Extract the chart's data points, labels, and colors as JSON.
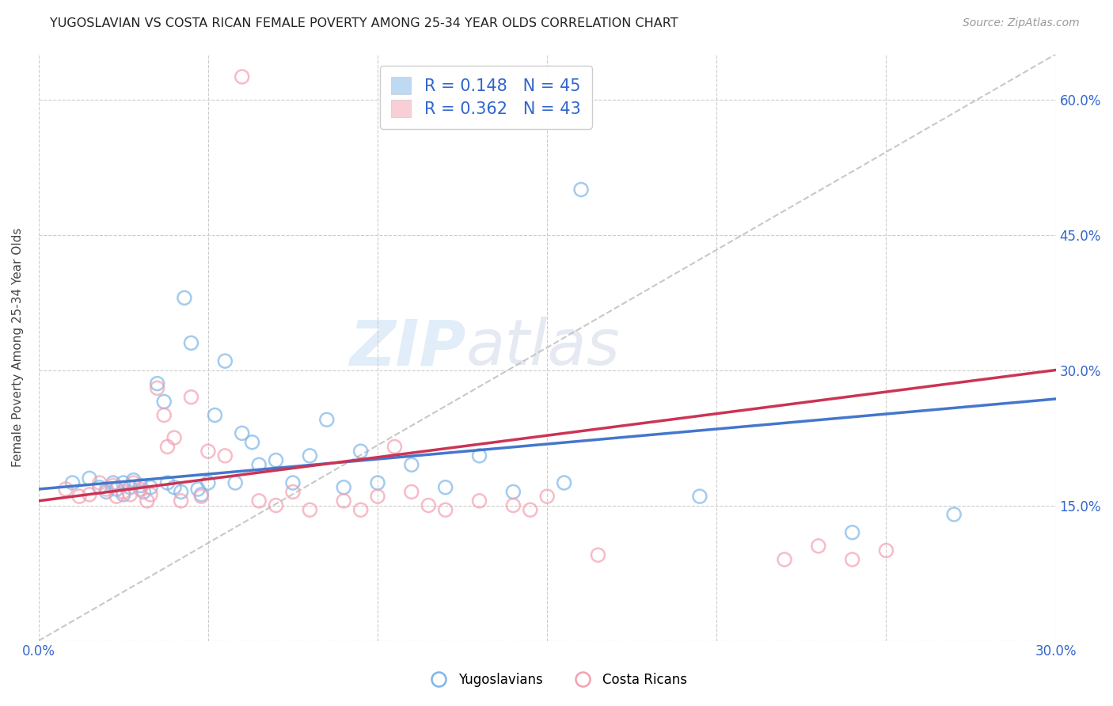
{
  "title": "YUGOSLAVIAN VS COSTA RICAN FEMALE POVERTY AMONG 25-34 YEAR OLDS CORRELATION CHART",
  "source": "Source: ZipAtlas.com",
  "ylabel": "Female Poverty Among 25-34 Year Olds",
  "xlim": [
    0.0,
    0.3
  ],
  "ylim": [
    0.0,
    0.65
  ],
  "xticks": [
    0.0,
    0.05,
    0.1,
    0.15,
    0.2,
    0.25,
    0.3
  ],
  "yticks": [
    0.0,
    0.15,
    0.3,
    0.45,
    0.6
  ],
  "xtick_labels": [
    "0.0%",
    "",
    "",
    "",
    "",
    "",
    "30.0%"
  ],
  "right_ytick_labels": [
    "",
    "15.0%",
    "30.0%",
    "45.0%",
    "60.0%"
  ],
  "blue_color": "#7EB6E8",
  "pink_color": "#F4A0B0",
  "blue_line_color": "#4477CC",
  "pink_line_color": "#CC3355",
  "diagonal_color": "#BBBBBB",
  "legend_color": "#3366CC",
  "R_blue": "0.148",
  "N_blue": "45",
  "R_pink": "0.362",
  "N_pink": "43",
  "watermark_zip": "ZIP",
  "watermark_atlas": "atlas",
  "blue_scatter_x": [
    0.01,
    0.015,
    0.018,
    0.02,
    0.022,
    0.023,
    0.025,
    0.025,
    0.027,
    0.028,
    0.03,
    0.031,
    0.033,
    0.035,
    0.037,
    0.038,
    0.04,
    0.042,
    0.043,
    0.045,
    0.047,
    0.048,
    0.05,
    0.052,
    0.055,
    0.058,
    0.06,
    0.063,
    0.065,
    0.07,
    0.075,
    0.08,
    0.085,
    0.09,
    0.095,
    0.1,
    0.11,
    0.12,
    0.13,
    0.14,
    0.155,
    0.16,
    0.195,
    0.24,
    0.27
  ],
  "blue_scatter_y": [
    0.175,
    0.18,
    0.17,
    0.165,
    0.175,
    0.168,
    0.162,
    0.175,
    0.17,
    0.178,
    0.172,
    0.165,
    0.17,
    0.285,
    0.265,
    0.175,
    0.17,
    0.165,
    0.38,
    0.33,
    0.168,
    0.162,
    0.175,
    0.25,
    0.31,
    0.175,
    0.23,
    0.22,
    0.195,
    0.2,
    0.175,
    0.205,
    0.245,
    0.17,
    0.21,
    0.175,
    0.195,
    0.17,
    0.205,
    0.165,
    0.175,
    0.5,
    0.16,
    0.12,
    0.14
  ],
  "pink_scatter_x": [
    0.008,
    0.012,
    0.015,
    0.018,
    0.02,
    0.022,
    0.023,
    0.025,
    0.027,
    0.028,
    0.03,
    0.032,
    0.033,
    0.035,
    0.037,
    0.038,
    0.04,
    0.042,
    0.045,
    0.048,
    0.05,
    0.055,
    0.06,
    0.065,
    0.07,
    0.075,
    0.08,
    0.09,
    0.095,
    0.1,
    0.105,
    0.11,
    0.115,
    0.12,
    0.13,
    0.14,
    0.145,
    0.15,
    0.165,
    0.22,
    0.23,
    0.24,
    0.25
  ],
  "pink_scatter_y": [
    0.168,
    0.16,
    0.162,
    0.175,
    0.168,
    0.172,
    0.16,
    0.165,
    0.162,
    0.175,
    0.168,
    0.155,
    0.162,
    0.28,
    0.25,
    0.215,
    0.225,
    0.155,
    0.27,
    0.16,
    0.21,
    0.205,
    0.625,
    0.155,
    0.15,
    0.165,
    0.145,
    0.155,
    0.145,
    0.16,
    0.215,
    0.165,
    0.15,
    0.145,
    0.155,
    0.15,
    0.145,
    0.16,
    0.095,
    0.09,
    0.105,
    0.09,
    0.1
  ]
}
